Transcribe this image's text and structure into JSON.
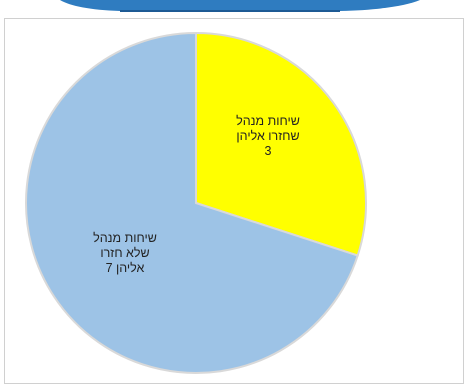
{
  "colors": {
    "top_band": "#2f7cc0",
    "top_band_dark": "#1d5a94",
    "slice_stroke": "#d9d9d9"
  },
  "chart_data": {
    "type": "pie",
    "title": "",
    "start_angle_deg": 0,
    "direction": "clockwise",
    "slices": [
      {
        "value": 3,
        "color": "#ffff00",
        "label_lines": [
          "שיחות מנהל",
          "שחזרו אליהן",
          "3"
        ]
      },
      {
        "value": 7,
        "color": "#9dc3e6",
        "label_lines": [
          "שיחות מנהל",
          "שלא חזרו",
          "אליהן  7"
        ]
      }
    ],
    "legend": "none"
  }
}
